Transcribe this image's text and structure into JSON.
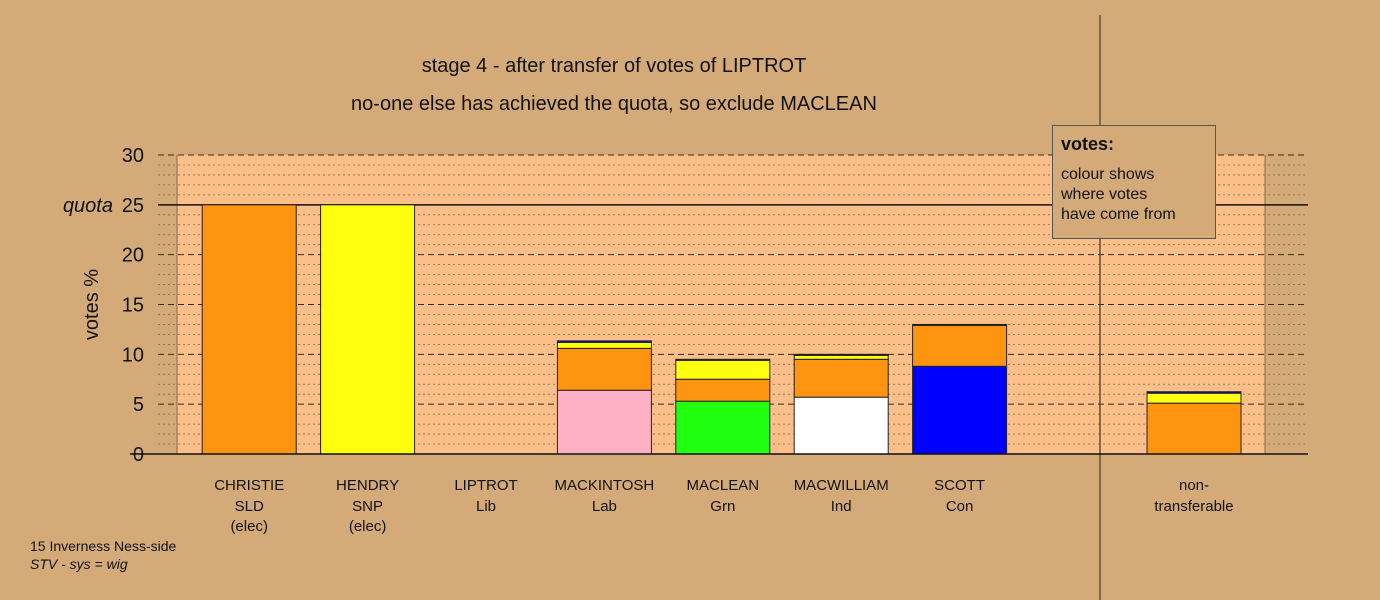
{
  "header": {
    "title": "stage 4 - after transfer of votes of LIPTROT",
    "subtitle": "no-one else has achieved the quota, so exclude MACLEAN"
  },
  "footer": {
    "line1": "15 Inverness Ness-side",
    "line2": "STV - sys = wig"
  },
  "legend": {
    "title": "votes:",
    "lines": [
      "colour shows",
      "where votes",
      "have come from"
    ]
  },
  "colors": {
    "SLD": "#ff9410",
    "SNP": "#ffff10",
    "Lab": "#ffb0c4",
    "Grn": "#20ff10",
    "Ind": "#ffffff",
    "Con": "#0000ff",
    "background": "#d4aa78",
    "plot_area": "#fdbf8a"
  },
  "chart_data": {
    "type": "bar",
    "stacked": true,
    "ylabel": "votes %",
    "ylim": [
      0,
      30
    ],
    "yticks": [
      0,
      5,
      10,
      15,
      20,
      25,
      30
    ],
    "quota": 25,
    "quota_label": "quota",
    "grid": true,
    "categories": [
      {
        "name": "CHRISTIE",
        "party": "SLD",
        "status": "(elec)"
      },
      {
        "name": "HENDRY",
        "party": "SNP",
        "status": "(elec)"
      },
      {
        "name": "LIPTROT",
        "party": "Lib",
        "status": ""
      },
      {
        "name": "MACKINTOSH",
        "party": "Lab",
        "status": ""
      },
      {
        "name": "MACLEAN",
        "party": "Grn",
        "status": ""
      },
      {
        "name": "MACWILLIAM",
        "party": "Ind",
        "status": ""
      },
      {
        "name": "SCOTT",
        "party": "Con",
        "status": ""
      }
    ],
    "nontransferable": {
      "label_line1": "non-",
      "label_line2": "transferable",
      "segments": [
        {
          "from": "SLD",
          "value": 5.1
        },
        {
          "from": "SNP",
          "value": 1.0
        },
        {
          "from": "Con",
          "value": 0.15
        }
      ]
    },
    "bars": [
      {
        "segments": [
          {
            "from": "SLD",
            "value": 25.0
          }
        ]
      },
      {
        "segments": [
          {
            "from": "SNP",
            "value": 25.0
          }
        ]
      },
      {
        "segments": []
      },
      {
        "segments": [
          {
            "from": "Lab",
            "value": 6.4
          },
          {
            "from": "SLD",
            "value": 4.2
          },
          {
            "from": "SNP",
            "value": 0.6
          },
          {
            "from": "Con",
            "value": 0.15
          }
        ]
      },
      {
        "segments": [
          {
            "from": "Grn",
            "value": 5.3
          },
          {
            "from": "SLD",
            "value": 2.2
          },
          {
            "from": "SNP",
            "value": 1.9
          },
          {
            "from": "Con",
            "value": 0.1
          }
        ]
      },
      {
        "segments": [
          {
            "from": "Ind",
            "value": 5.7
          },
          {
            "from": "SLD",
            "value": 3.8
          },
          {
            "from": "SNP",
            "value": 0.4
          },
          {
            "from": "Con",
            "value": 0.1
          }
        ]
      },
      {
        "segments": [
          {
            "from": "Con",
            "value": 8.8
          },
          {
            "from": "SLD",
            "value": 4.1
          },
          {
            "from": "SNP",
            "value": 0.1
          }
        ]
      }
    ]
  }
}
